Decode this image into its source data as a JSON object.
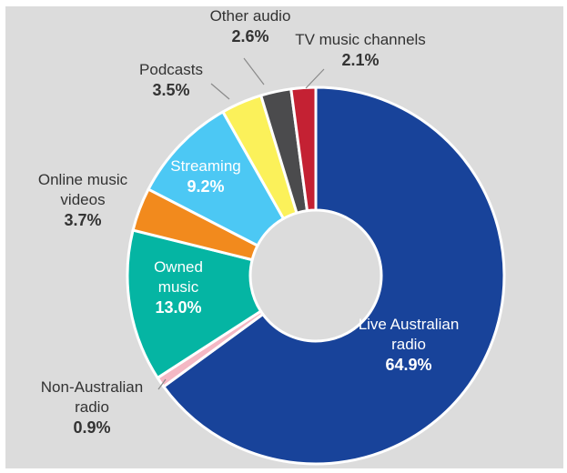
{
  "chart_data": {
    "type": "pie",
    "variant": "donut",
    "title": "",
    "categories": [
      "Live Australian radio",
      "Non-Australian radio",
      "Owned music",
      "Online music videos",
      "Streaming",
      "Podcasts",
      "Other audio",
      "TV music channels"
    ],
    "values": [
      64.9,
      0.9,
      13.0,
      3.7,
      9.2,
      3.5,
      2.6,
      2.1
    ],
    "value_labels": [
      "64.9%",
      "0.9%",
      "13.0%",
      "3.7%",
      "9.2%",
      "3.5%",
      "2.6%",
      "2.1%"
    ],
    "label_lines": [
      [
        "Live Australian",
        "radio"
      ],
      [
        "Non-Australian",
        "radio"
      ],
      [
        "Owned",
        "music"
      ],
      [
        "Online music",
        "videos"
      ],
      [
        "Streaming"
      ],
      [
        "Podcasts"
      ],
      [
        "Other audio"
      ],
      [
        "TV music channels"
      ]
    ],
    "colors": [
      "#18439a",
      "#f4b8c4",
      "#05b5a3",
      "#f28a1d",
      "#4cc8f4",
      "#fbf15a",
      "#4b4b4d",
      "#c42133"
    ],
    "background": "#dcdcdc",
    "start": "top, clockwise",
    "legend": "none (callout labels)"
  }
}
